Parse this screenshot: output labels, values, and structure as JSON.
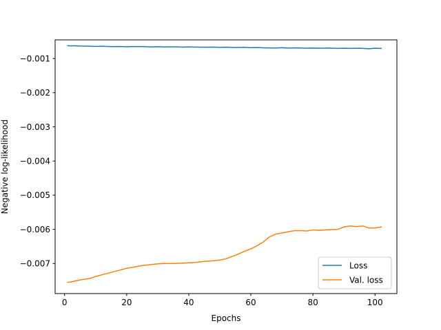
{
  "chart_data": {
    "type": "line",
    "title": "",
    "xlabel": "Epochs",
    "ylabel": "Negative log-likelihood",
    "xlim": [
      -3.05,
      107.05
    ],
    "ylim": [
      -0.00788,
      -0.000455
    ],
    "xticks": [
      0,
      20,
      40,
      60,
      80,
      100
    ],
    "xtick_labels": [
      "0",
      "20",
      "40",
      "60",
      "80",
      "100"
    ],
    "yticks": [
      -0.007,
      -0.006,
      -0.005,
      -0.004,
      -0.003,
      -0.002,
      -0.001
    ],
    "ytick_labels": [
      "−0.007",
      "−0.006",
      "−0.005",
      "−0.004",
      "−0.003",
      "−0.002",
      "−0.001"
    ],
    "grid": false,
    "legend": {
      "placement": "lower-right",
      "entries": [
        "Loss",
        "Val. loss"
      ]
    },
    "series": [
      {
        "name": "Loss",
        "color": "#1f77b4",
        "x": [
          1,
          2,
          3,
          5,
          8,
          10,
          12,
          15,
          18,
          20,
          22,
          25,
          28,
          30,
          32,
          35,
          38,
          40,
          42,
          45,
          48,
          50,
          52,
          55,
          58,
          60,
          62,
          65,
          68,
          70,
          72,
          75,
          78,
          80,
          82,
          85,
          88,
          90,
          92,
          95,
          98,
          100,
          102
        ],
        "y": [
          -0.000625,
          -0.00063,
          -0.000625,
          -0.000635,
          -0.00064,
          -0.000645,
          -0.000642,
          -0.00065,
          -0.000648,
          -0.000655,
          -0.00065,
          -0.00065,
          -0.00066,
          -0.000655,
          -0.00066,
          -0.000658,
          -0.000665,
          -0.00066,
          -0.000665,
          -0.00067,
          -0.000665,
          -0.000675,
          -0.00067,
          -0.00068,
          -0.000675,
          -0.000685,
          -0.00068,
          -0.00069,
          -0.000695,
          -0.000685,
          -0.000695,
          -0.00069,
          -0.0007,
          -0.000695,
          -0.0007,
          -0.000695,
          -0.000705,
          -0.0007,
          -0.000705,
          -0.0007,
          -0.000715,
          -0.0007,
          -0.000705
        ]
      },
      {
        "name": "Val. loss",
        "color": "#ff7f0e",
        "x": [
          1,
          2,
          3,
          5,
          8,
          10,
          12,
          15,
          18,
          20,
          22,
          25,
          28,
          30,
          32,
          35,
          38,
          40,
          42,
          45,
          48,
          50,
          52,
          55,
          58,
          60,
          62,
          64,
          66,
          68,
          70,
          72,
          74,
          76,
          78,
          80,
          82,
          85,
          88,
          90,
          92,
          94,
          96,
          98,
          100,
          102
        ],
        "y": [
          -0.00755,
          -0.00754,
          -0.00752,
          -0.00748,
          -0.00744,
          -0.00738,
          -0.00733,
          -0.00726,
          -0.00719,
          -0.00714,
          -0.00711,
          -0.00706,
          -0.00703,
          -0.00701,
          -0.007,
          -0.007,
          -0.00699,
          -0.00698,
          -0.00697,
          -0.00694,
          -0.00692,
          -0.0069,
          -0.00686,
          -0.00676,
          -0.00664,
          -0.00657,
          -0.00648,
          -0.00637,
          -0.00622,
          -0.00614,
          -0.00611,
          -0.00607,
          -0.00604,
          -0.00604,
          -0.00605,
          -0.00602,
          -0.00603,
          -0.00601,
          -0.006,
          -0.00593,
          -0.0059,
          -0.00592,
          -0.0059,
          -0.00596,
          -0.00596,
          -0.00593
        ]
      }
    ]
  }
}
